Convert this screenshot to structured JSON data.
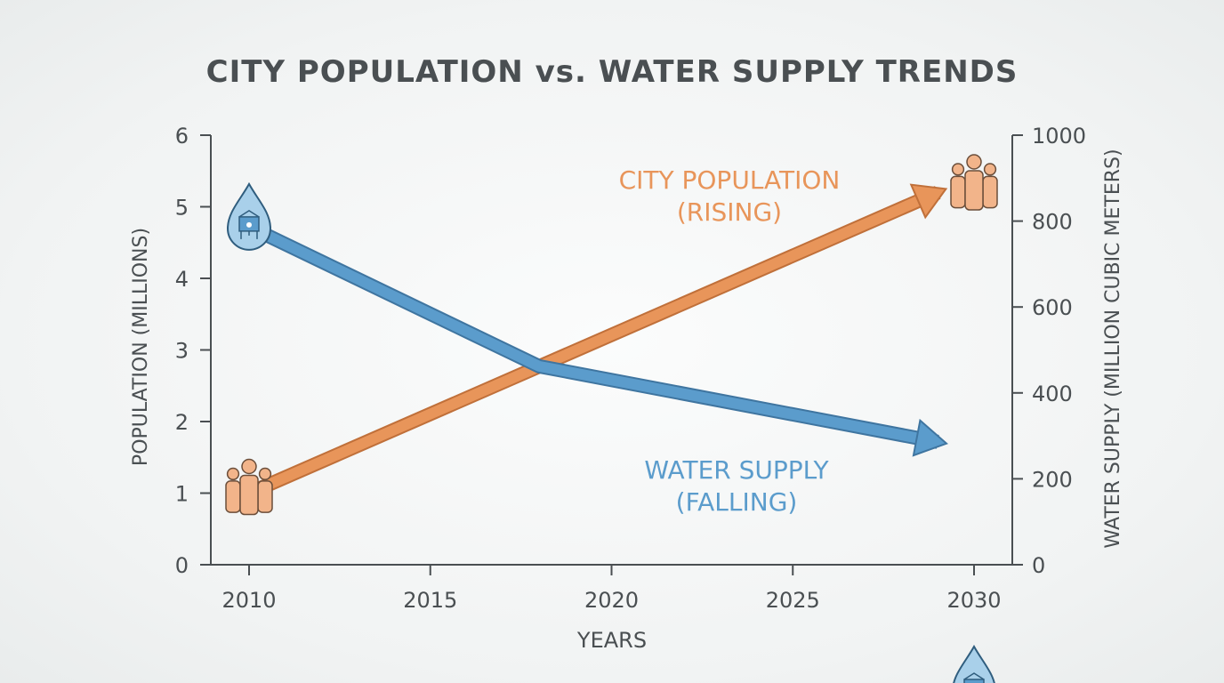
{
  "chart_data": {
    "type": "line",
    "title": "CITY POPULATION vs. WATER SUPPLY TRENDS",
    "xlabel": "YEARS",
    "ylabel_left": "POPULATION (MILLIONS)",
    "ylabel_right": "WATER SUPPLY (MILLION CUBIC METERS)",
    "xlim": [
      2010,
      2030
    ],
    "x_ticks": [
      "2010",
      "2015",
      "2020",
      "2025",
      "2030"
    ],
    "ylim_left": [
      0,
      6
    ],
    "y_ticks_left": [
      "0",
      "1",
      "2",
      "3",
      "4",
      "5",
      "6"
    ],
    "ylim_right": [
      0,
      1000
    ],
    "y_ticks_right": [
      "0",
      "200",
      "400",
      "600",
      "800",
      "1000"
    ],
    "grid": false,
    "series": [
      {
        "name": "CITY POPULATION (RISING)",
        "label_lines": [
          "CITY POPULATION",
          "(RISING)"
        ],
        "axis": "left",
        "color": "#e8955a",
        "icon": "people-icon",
        "points": [
          {
            "x": 2010,
            "y": 1.0
          },
          {
            "x": 2029,
            "y": 5.2
          }
        ]
      },
      {
        "name": "WATER SUPPLY (FALLING)",
        "label_lines": [
          "WATER SUPPLY",
          "(FALLING)"
        ],
        "axis": "right",
        "color": "#5b9ccc",
        "icon": "water-tower-drop-icon",
        "points": [
          {
            "x": 2010,
            "y": 787
          },
          {
            "x": 2018,
            "y": 462
          },
          {
            "x": 2029,
            "y": 286
          }
        ]
      }
    ]
  }
}
